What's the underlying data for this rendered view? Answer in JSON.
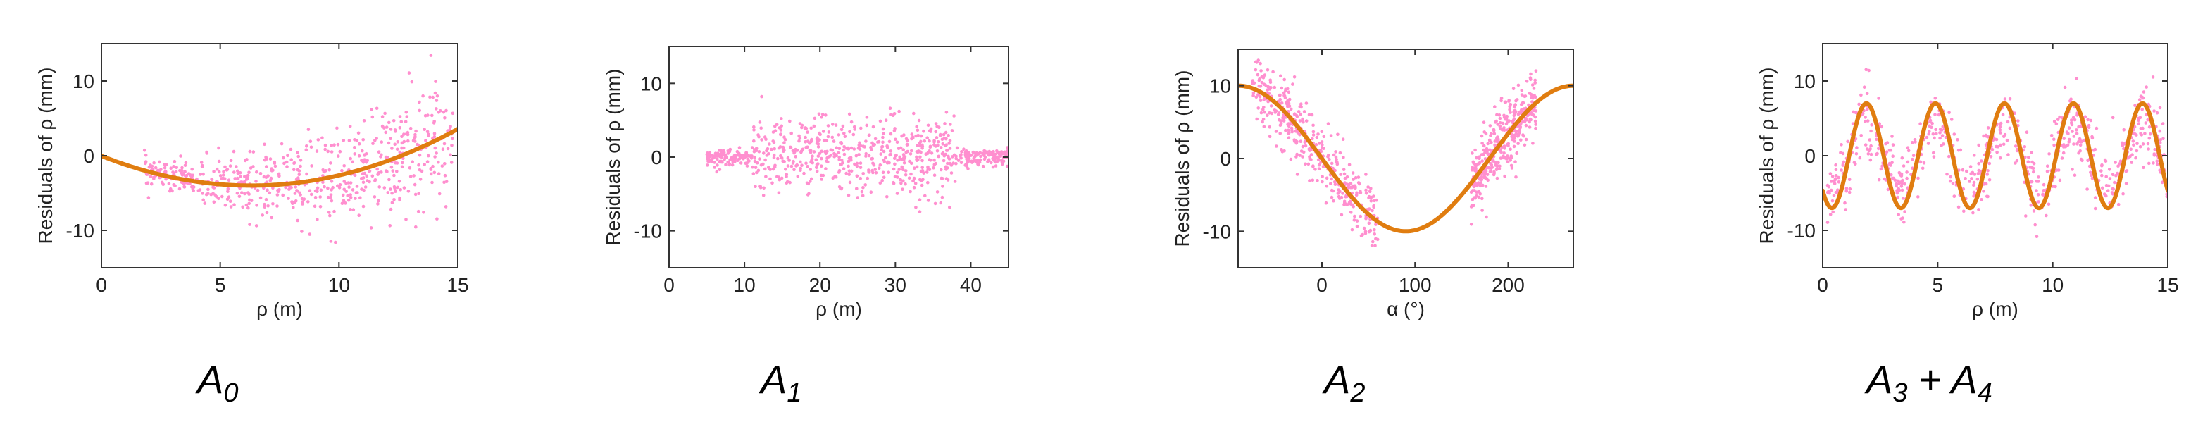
{
  "chart_data": [
    {
      "type": "scatter",
      "caption": {
        "main": "A",
        "sub": "0",
        "rest": ""
      },
      "xlabel": "ρ (m)",
      "ylabel": "Residuals of ρ (mm)",
      "xlim": [
        0,
        15
      ],
      "ylim": [
        -15,
        15
      ],
      "xticks": [
        0,
        5,
        10,
        15
      ],
      "yticks": [
        -10,
        0,
        10
      ],
      "grid": false,
      "series": [
        {
          "kind": "scatter",
          "color": "#ff8fcf",
          "x_range": [
            1.8,
            14.8
          ],
          "n": 650,
          "trend": "quadratic",
          "spread": "increasing"
        },
        {
          "kind": "line",
          "color": "#e07d10",
          "x": [
            0,
            1.5,
            3,
            4.5,
            6,
            7.5,
            9,
            10.5,
            12,
            13.5,
            15
          ],
          "y": [
            -0.8,
            -2.4,
            -3.4,
            -3.95,
            -4.0,
            -3.6,
            -2.7,
            -1.2,
            0.7,
            3.1,
            6.0
          ]
        }
      ]
    },
    {
      "type": "scatter",
      "caption": {
        "main": "A",
        "sub": "1",
        "rest": ""
      },
      "xlabel": "ρ (m)",
      "ylabel": "Residuals of ρ (mm)",
      "xlim": [
        0,
        45
      ],
      "ylim": [
        -15,
        15
      ],
      "xticks": [
        0,
        10,
        20,
        30,
        40
      ],
      "yticks": [
        -10,
        0,
        10
      ],
      "grid": false,
      "series": [
        {
          "kind": "scatter",
          "color": "#ff8fcf",
          "x_range": [
            5,
            45
          ],
          "n": 800,
          "trend": "flat",
          "spread": "wide-middle"
        }
      ]
    },
    {
      "type": "scatter",
      "caption": {
        "main": "A",
        "sub": "2",
        "rest": ""
      },
      "xlabel": "α (°)",
      "ylabel": "Residuals of ρ (mm)",
      "xlim": [
        -90,
        270
      ],
      "ylim": [
        -15,
        15
      ],
      "xticks": [
        0,
        100,
        200
      ],
      "yticks": [
        -10,
        0,
        10
      ],
      "grid": false,
      "series": [
        {
          "kind": "scatter",
          "color": "#ff8fcf",
          "x_clusters": [
            [
              -75,
              60
            ],
            [
              160,
              230
            ]
          ],
          "n": 800,
          "trend": "cosine"
        },
        {
          "kind": "line",
          "color": "#e07d10",
          "x": [
            -90,
            -60,
            -30,
            0,
            30,
            60,
            90,
            120,
            150,
            180,
            210,
            240,
            270
          ],
          "y": [
            10,
            8.7,
            5,
            0,
            -5,
            -8.7,
            -10,
            -8.7,
            -5,
            0,
            5,
            8.7,
            10
          ]
        }
      ]
    },
    {
      "type": "scatter",
      "caption": {
        "main": "A",
        "sub": "3",
        "rest": " + A",
        "sub2": "4"
      },
      "xlabel": "ρ (m)",
      "ylabel": "Residuals of ρ (mm)",
      "xlim": [
        0,
        15
      ],
      "ylim": [
        -15,
        15
      ],
      "xticks": [
        0,
        5,
        10,
        15
      ],
      "yticks": [
        -10,
        0,
        10
      ],
      "grid": false,
      "series": [
        {
          "kind": "scatter",
          "color": "#ff8fcf",
          "x_range": [
            0.2,
            15
          ],
          "n": 700,
          "trend": "periodic",
          "period": 3.0,
          "amplitude": 7
        },
        {
          "kind": "line",
          "color": "#e07d10",
          "period": 3.0,
          "amplitude": 7,
          "phase_peak_x": 1.9,
          "x": [
            0,
            0.4,
            1.15,
            1.9,
            2.65,
            3.4,
            4.15,
            4.9,
            5.65,
            6.4,
            7.15,
            7.9,
            8.65,
            9.4,
            10.15,
            10.9,
            11.65,
            12.4,
            13.15,
            13.9,
            14.65,
            15
          ],
          "y": [
            -4.8,
            -7,
            0,
            7,
            0,
            -7,
            0,
            7,
            0,
            -7,
            0,
            7,
            0,
            -7,
            0,
            7,
            0,
            -7,
            0,
            7,
            0,
            -4.5
          ]
        }
      ]
    }
  ]
}
